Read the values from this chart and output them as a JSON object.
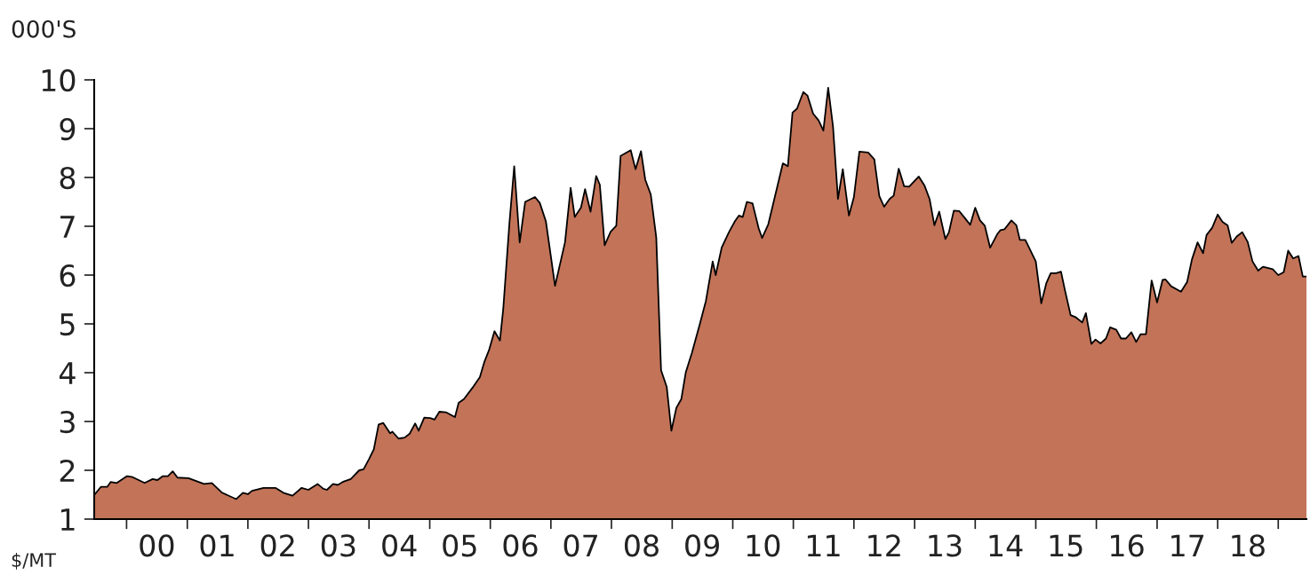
{
  "chart_data": {
    "type": "area",
    "ylabel": "000'S",
    "annotations": [
      "$/MT"
    ],
    "xlim": [
      "1999-06-20",
      "2019-06-20"
    ],
    "ylim": [
      1,
      10
    ],
    "yticks": [
      1,
      2,
      3,
      4,
      5,
      6,
      7,
      8,
      9,
      10
    ],
    "xticks": [
      {
        "value": "2000-01-01",
        "label": null
      },
      {
        "value": "2001-01-01",
        "label": null
      },
      {
        "value": "2002-01-01",
        "label": null
      },
      {
        "value": "2003-01-01",
        "label": null
      },
      {
        "value": "2004-01-01",
        "label": null
      },
      {
        "value": "2005-01-01",
        "label": null
      },
      {
        "value": "2006-01-01",
        "label": null
      },
      {
        "value": "2007-01-01",
        "label": null
      },
      {
        "value": "2008-01-01",
        "label": null
      },
      {
        "value": "2009-01-01",
        "label": null
      },
      {
        "value": "2010-01-01",
        "label": null
      },
      {
        "value": "2011-01-01",
        "label": null
      },
      {
        "value": "2012-01-01",
        "label": null
      },
      {
        "value": "2013-01-01",
        "label": null
      },
      {
        "value": "2014-01-01",
        "label": null
      },
      {
        "value": "2015-01-01",
        "label": null
      },
      {
        "value": "2016-01-01",
        "label": null
      },
      {
        "value": "2017-01-01",
        "label": null
      },
      {
        "value": "2018-01-01",
        "label": null
      },
      {
        "value": "2019-01-01",
        "label": null
      },
      {
        "value": "2000-07-01",
        "label": "00"
      },
      {
        "value": "2001-07-01",
        "label": "01"
      },
      {
        "value": "2002-07-01",
        "label": "02"
      },
      {
        "value": "2003-07-01",
        "label": "03"
      },
      {
        "value": "2004-07-01",
        "label": "04"
      },
      {
        "value": "2005-07-01",
        "label": "05"
      },
      {
        "value": "2006-07-01",
        "label": "06"
      },
      {
        "value": "2007-07-01",
        "label": "07"
      },
      {
        "value": "2008-07-01",
        "label": "08"
      },
      {
        "value": "2009-07-01",
        "label": "09"
      },
      {
        "value": "2010-07-01",
        "label": "10"
      },
      {
        "value": "2011-07-01",
        "label": "11"
      },
      {
        "value": "2012-07-01",
        "label": "12"
      },
      {
        "value": "2013-07-01",
        "label": "13"
      },
      {
        "value": "2014-07-01",
        "label": "14"
      },
      {
        "value": "2015-07-01",
        "label": "15"
      },
      {
        "value": "2016-07-01",
        "label": "16"
      },
      {
        "value": "2017-07-01",
        "label": "17"
      },
      {
        "value": "2018-07-01",
        "label": "18"
      }
    ],
    "grid": false,
    "legend": false,
    "series": [
      {
        "color": "#c27358",
        "x": [
          "1999-06-24",
          "1999-07-30",
          "1999-09-06",
          "1999-09-27",
          "1999-11-03",
          "2000-01-04",
          "2000-02-07",
          "2000-04-19",
          "2000-06-06",
          "2000-07-05",
          "2000-08-07",
          "2000-09-06",
          "2000-10-05",
          "2000-11-03",
          "2001-01-08",
          "2001-04-12",
          "2001-05-29",
          "2001-07-30",
          "2001-10-23",
          "2001-12-02",
          "2002-01-01",
          "2002-01-26",
          "2002-04-05",
          "2002-06-16",
          "2002-08-03",
          "2002-09-27",
          "2002-11-21",
          "2003-01-01",
          "2003-02-25",
          "2003-04-01",
          "2003-04-23",
          "2003-05-29",
          "2003-06-27",
          "2003-07-26",
          "2003-09-13",
          "2003-11-03",
          "2003-11-29",
          "2004-01-01",
          "2004-01-30",
          "2004-02-28",
          "2004-03-27",
          "2004-05-07",
          "2004-05-21",
          "2004-06-27",
          "2004-08-03",
          "2004-09-02",
          "2004-10-05",
          "2004-10-26",
          "2004-11-29",
          "2005-01-04",
          "2005-01-30",
          "2005-02-28",
          "2005-04-08",
          "2005-06-02",
          "2005-06-24",
          "2005-07-26",
          "2005-09-24",
          "2005-10-30",
          "2005-11-25",
          "2005-12-24",
          "2006-01-26",
          "2006-02-28",
          "2006-03-20",
          "2006-04-26",
          "2006-05-25",
          "2006-06-27",
          "2006-07-30",
          "2006-09-27",
          "2006-10-26",
          "2006-12-02",
          "2007-01-26",
          "2007-03-27",
          "2007-04-30",
          "2007-05-25",
          "2007-07-01",
          "2007-07-26",
          "2007-08-28",
          "2007-10-01",
          "2007-10-23",
          "2007-11-21",
          "2007-12-27",
          "2008-01-30",
          "2008-02-25",
          "2008-04-26",
          "2008-05-25",
          "2008-06-27",
          "2008-07-23",
          "2008-08-25",
          "2008-09-27",
          "2008-10-26",
          "2008-11-29",
          "2008-12-27",
          "2009-01-26",
          "2009-02-25",
          "2009-03-24",
          "2009-04-30",
          "2009-06-16",
          "2009-07-23",
          "2009-09-02",
          "2009-09-20",
          "2009-10-26",
          "2009-12-09",
          "2010-01-15",
          "2010-02-07",
          "2010-03-02",
          "2010-03-27",
          "2010-04-30",
          "2010-06-06",
          "2010-06-27",
          "2010-08-03",
          "2010-10-30",
          "2010-11-29",
          "2010-12-27",
          "2011-01-23",
          "2011-03-02",
          "2011-03-27",
          "2011-04-30",
          "2011-06-02",
          "2011-07-01",
          "2011-07-30",
          "2011-08-28",
          "2011-09-27",
          "2011-10-26",
          "2011-12-02",
          "2012-01-01",
          "2012-02-03",
          "2012-03-27",
          "2012-05-03",
          "2012-06-02",
          "2012-07-01",
          "2012-08-03",
          "2012-08-28",
          "2012-09-27",
          "2012-10-30",
          "2012-11-29",
          "2013-01-26",
          "2013-03-02",
          "2013-04-01",
          "2013-04-30",
          "2013-05-29",
          "2013-07-05",
          "2013-07-26",
          "2013-08-25",
          "2013-09-27",
          "2013-10-30",
          "2013-12-02",
          "2014-01-01",
          "2014-01-30",
          "2014-02-28",
          "2014-04-01",
          "2014-05-14",
          "2014-06-02",
          "2014-06-27",
          "2014-08-07",
          "2014-09-06",
          "2014-09-27",
          "2014-10-30",
          "2014-11-25",
          "2015-01-01",
          "2015-02-03",
          "2015-03-06",
          "2015-04-01",
          "2015-05-03",
          "2015-06-02",
          "2015-06-27",
          "2015-07-30",
          "2015-08-28",
          "2015-10-08",
          "2015-10-30",
          "2015-12-02",
          "2015-12-27",
          "2016-01-26",
          "2016-02-28",
          "2016-03-24",
          "2016-04-30",
          "2016-05-29",
          "2016-06-27",
          "2016-07-30",
          "2016-08-28",
          "2016-09-24",
          "2016-10-26",
          "2016-11-29",
          "2017-01-01",
          "2017-02-03",
          "2017-02-21",
          "2017-03-27",
          "2017-05-25",
          "2017-07-01",
          "2017-07-30",
          "2017-09-02",
          "2017-10-05",
          "2017-10-26",
          "2017-11-29",
          "2018-01-01",
          "2018-01-30",
          "2018-03-02",
          "2018-03-27",
          "2018-04-26",
          "2018-05-29",
          "2018-07-01",
          "2018-07-30",
          "2018-09-02",
          "2018-10-01",
          "2018-11-29",
          "2019-01-01",
          "2019-02-03",
          "2019-03-02",
          "2019-04-01",
          "2019-05-03",
          "2019-05-29",
          "2019-06-20"
        ],
        "values": [
          1.51,
          1.66,
          1.66,
          1.76,
          1.74,
          1.88,
          1.86,
          1.74,
          1.82,
          1.8,
          1.88,
          1.88,
          1.98,
          1.85,
          1.84,
          1.72,
          1.74,
          1.54,
          1.41,
          1.54,
          1.51,
          1.58,
          1.64,
          1.64,
          1.54,
          1.48,
          1.64,
          1.6,
          1.72,
          1.62,
          1.6,
          1.72,
          1.7,
          1.76,
          1.82,
          2.0,
          2.02,
          2.23,
          2.43,
          2.94,
          2.97,
          2.76,
          2.79,
          2.65,
          2.67,
          2.75,
          2.96,
          2.81,
          3.08,
          3.07,
          3.04,
          3.2,
          3.19,
          3.09,
          3.38,
          3.46,
          3.73,
          3.91,
          4.21,
          4.46,
          4.85,
          4.66,
          5.31,
          7.06,
          8.23,
          6.67,
          7.5,
          7.6,
          7.48,
          7.1,
          5.78,
          6.67,
          7.79,
          7.19,
          7.38,
          7.76,
          7.3,
          8.03,
          7.85,
          6.61,
          6.89,
          7.01,
          8.44,
          8.56,
          8.17,
          8.54,
          7.95,
          7.65,
          6.77,
          4.05,
          3.71,
          2.81,
          3.28,
          3.46,
          4.01,
          4.41,
          4.99,
          5.47,
          6.28,
          6.0,
          6.56,
          6.88,
          7.11,
          7.22,
          7.19,
          7.5,
          7.47,
          6.96,
          6.76,
          7.04,
          8.29,
          8.23,
          9.33,
          9.41,
          9.75,
          9.68,
          9.31,
          9.17,
          8.96,
          9.84,
          9.05,
          7.56,
          8.17,
          7.22,
          7.6,
          8.53,
          8.51,
          8.37,
          7.62,
          7.4,
          7.56,
          7.63,
          8.18,
          7.82,
          7.81,
          8.02,
          7.83,
          7.56,
          7.02,
          7.3,
          6.74,
          6.87,
          7.32,
          7.31,
          7.17,
          7.03,
          7.38,
          7.12,
          7.01,
          6.56,
          6.84,
          6.92,
          6.94,
          7.12,
          7.02,
          6.72,
          6.72,
          6.54,
          6.28,
          5.42,
          5.84,
          6.04,
          6.04,
          6.07,
          5.67,
          5.18,
          5.14,
          5.03,
          5.22,
          4.59,
          4.68,
          4.6,
          4.7,
          4.93,
          4.88,
          4.7,
          4.7,
          4.83,
          4.63,
          4.79,
          4.79,
          5.89,
          5.44,
          5.9,
          5.91,
          5.77,
          5.66,
          5.86,
          6.32,
          6.67,
          6.45,
          6.82,
          6.97,
          7.24,
          7.09,
          7.02,
          6.66,
          6.79,
          6.88,
          6.68,
          6.28,
          6.09,
          6.17,
          6.12,
          6.0,
          6.06,
          6.5,
          6.34,
          6.39,
          5.97,
          5.97
        ]
      }
    ]
  }
}
